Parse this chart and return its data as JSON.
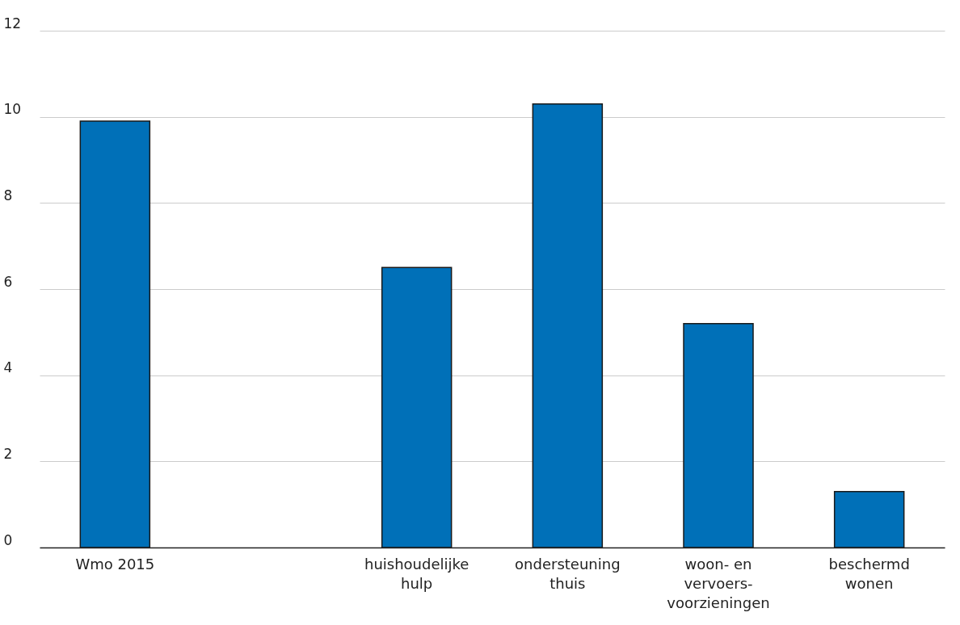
{
  "chart_data": {
    "type": "bar",
    "categories": [
      "Wmo 2015",
      null,
      "huishoudelijke hulp",
      "ondersteuning thuis",
      "woon- en vervoers-voorzieningen",
      "beschermd wonen"
    ],
    "values": [
      9.9,
      null,
      6.5,
      10.3,
      5.2,
      1.3
    ],
    "color": "#0070b8",
    "ylim": [
      0,
      12
    ],
    "yticks": [
      0,
      2,
      4,
      6,
      8,
      10,
      12
    ],
    "grid": "y"
  }
}
